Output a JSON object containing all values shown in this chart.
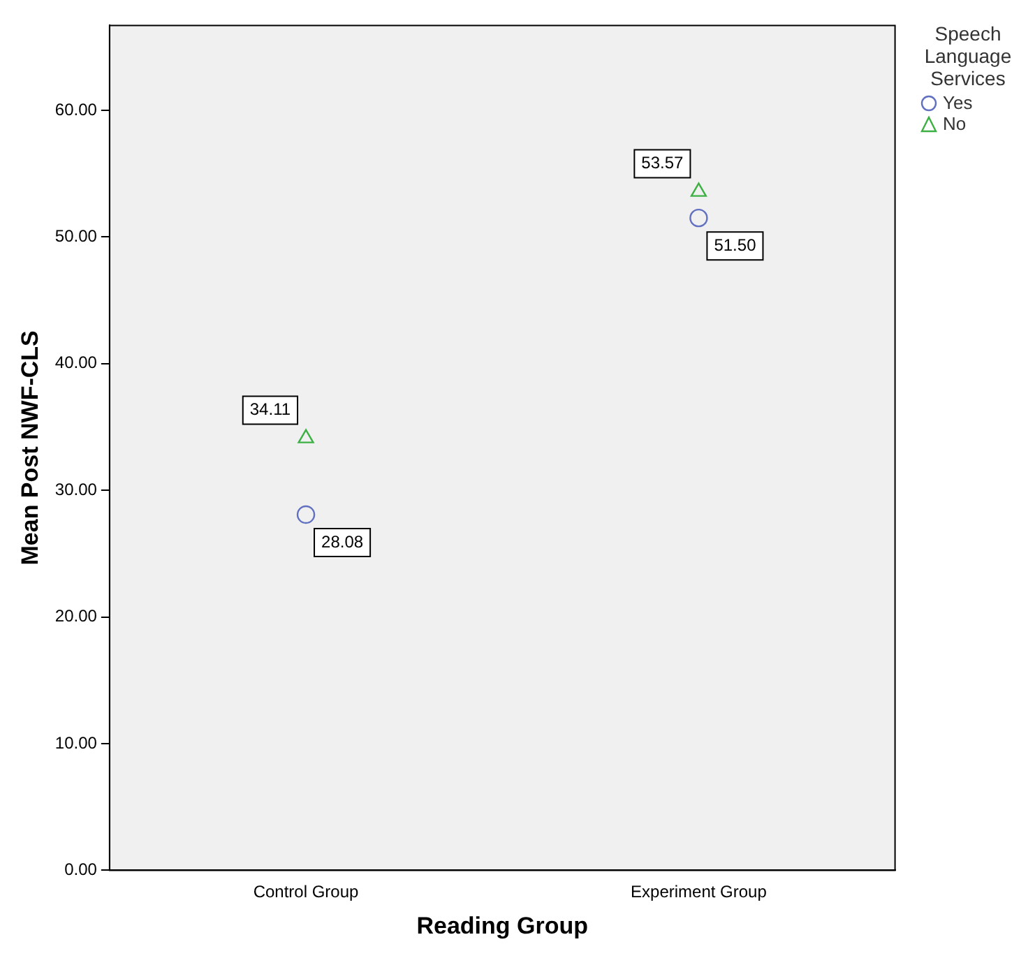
{
  "chart_data": {
    "type": "scatter",
    "ylabel": "Mean Post NWF-CLS",
    "xlabel": "Reading Group",
    "legend_title": "Speech Language Services",
    "legend": "top right",
    "grid": false,
    "data_labels": true,
    "categories": [
      "Control Group",
      "Experiment Group"
    ],
    "ylim": [
      0,
      66.7
    ],
    "yticks": [
      {
        "value": 0,
        "label": "0.00"
      },
      {
        "value": 10,
        "label": "10.00"
      },
      {
        "value": 20,
        "label": "20.00"
      },
      {
        "value": 30,
        "label": "30.00"
      },
      {
        "value": 40,
        "label": "40.00"
      },
      {
        "value": 50,
        "label": "50.00"
      },
      {
        "value": 60,
        "label": "60.00"
      }
    ],
    "series": [
      {
        "name": "Yes",
        "color": "#6170c0",
        "marker": "circle",
        "values": [
          28.08,
          51.5
        ],
        "value_labels": [
          "28.08",
          "51.50"
        ]
      },
      {
        "name": "No",
        "color": "#3cb043",
        "marker": "triangle",
        "values": [
          34.11,
          53.57
        ],
        "value_labels": [
          "34.11",
          "53.57"
        ]
      }
    ]
  }
}
